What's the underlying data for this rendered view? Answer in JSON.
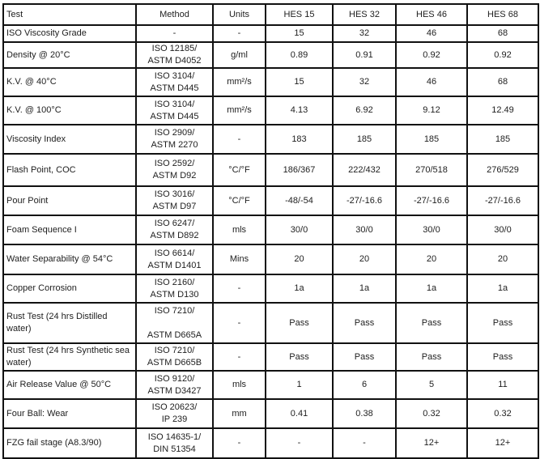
{
  "table": {
    "headers": [
      "Test",
      "Method",
      "Units",
      "HES 15",
      "HES 32",
      "HES 46",
      "HES 68"
    ],
    "rows": [
      {
        "test": "ISO Viscosity Grade",
        "method": "-",
        "units": "-",
        "values": [
          "15",
          "32",
          "46",
          "68"
        ]
      },
      {
        "test": "Density @ 20°C",
        "method": "ISO 12185/\nASTM D4052",
        "units": "g/ml",
        "values": [
          "0.89",
          "0.91",
          "0.92",
          "0.92"
        ]
      },
      {
        "test": "K.V. @ 40°C",
        "method": "ISO 3104/\nASTM D445",
        "units": "mm²/s",
        "values": [
          "15",
          "32",
          "46",
          "68"
        ]
      },
      {
        "test": "K.V. @ 100°C",
        "method": "ISO 3104/\nASTM D445",
        "units": "mm²/s",
        "values": [
          "4.13",
          "6.92",
          "9.12",
          "12.49"
        ]
      },
      {
        "test": "Viscosity Index",
        "method": "ISO 2909/\nASTM 2270",
        "units": "-",
        "values": [
          "183",
          "185",
          "185",
          "185"
        ]
      },
      {
        "test": "Flash Point, COC",
        "method": "ISO 2592/\nASTM D92",
        "units": "°C/°F",
        "values": [
          "186/367",
          "222/432",
          "270/518",
          "276/529"
        ]
      },
      {
        "test": "Pour Point",
        "method": "ISO 3016/\nASTM D97",
        "units": "°C/°F",
        "values": [
          "-48/-54",
          "-27/-16.6",
          "-27/-16.6",
          "-27/-16.6"
        ]
      },
      {
        "test": "Foam Sequence I",
        "method": "ISO 6247/\nASTM D892",
        "units": "mls",
        "values": [
          "30/0",
          "30/0",
          "30/0",
          "30/0"
        ]
      },
      {
        "test": "Water Separability @ 54°C",
        "method": "ISO 6614/\nASTM D1401",
        "units": "Mins",
        "values": [
          "20",
          "20",
          "20",
          "20"
        ]
      },
      {
        "test": "Copper Corrosion",
        "method": "ISO 2160/\nASTM D130",
        "units": "-",
        "values": [
          "1a",
          "1a",
          "1a",
          "1a"
        ]
      },
      {
        "test": "Rust Test (24 hrs Distilled water)",
        "method": "ISO 7210/\n\nASTM D665A",
        "units": "-",
        "values": [
          "Pass",
          "Pass",
          "Pass",
          "Pass"
        ]
      },
      {
        "test": "Rust Test (24 hrs Synthetic sea water)",
        "method": "ISO 7210/\nASTM D665B",
        "units": "-",
        "values": [
          "Pass",
          "Pass",
          "Pass",
          "Pass"
        ]
      },
      {
        "test": "Air Release Value @ 50°C",
        "method": "ISO 9120/\nASTM D3427",
        "units": "mls",
        "values": [
          "1",
          "6",
          "5",
          "11"
        ]
      },
      {
        "test": "Four Ball: Wear",
        "method": "ISO 20623/\nIP 239",
        "units": "mm",
        "values": [
          "0.41",
          "0.38",
          "0.32",
          "0.32"
        ]
      },
      {
        "test": "FZG fail stage (A8.3/90)",
        "method": "ISO 14635-1/\nDIN 51354",
        "units": "-",
        "values": [
          "-",
          "-",
          "12+",
          "12+"
        ]
      }
    ]
  }
}
